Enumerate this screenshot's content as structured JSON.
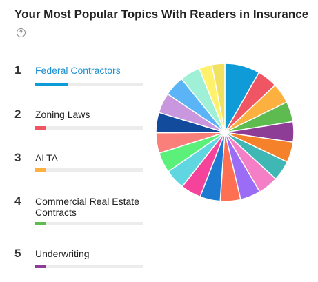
{
  "header": {
    "title": "Your Most Popular Topics With Readers in Insurance",
    "help_icon": "question-circle-icon"
  },
  "topics": [
    {
      "rank": "1",
      "label": "Federal Contractors",
      "color": "#0e9bd8",
      "share": 0.3,
      "active": true
    },
    {
      "rank": "2",
      "label": "Zoning Laws",
      "color": "#f05564",
      "share": 0.1,
      "active": false
    },
    {
      "rank": "3",
      "label": "ALTA",
      "color": "#fbb040",
      "share": 0.1,
      "active": false
    },
    {
      "rank": "4",
      "label": "Commercial Real Estate Contracts",
      "color": "#5dbb4f",
      "share": 0.1,
      "active": false
    },
    {
      "rank": "5",
      "label": "Underwriting",
      "color": "#8e3d96",
      "share": 0.1,
      "active": false
    }
  ],
  "chart_data": {
    "type": "pie",
    "values": [
      9.5,
      5.5,
      5.5,
      5.5,
      5.5,
      5.5,
      5.5,
      5.5,
      5.5,
      5.5,
      5.5,
      5.5,
      5.5,
      5.5,
      5.5,
      5.5,
      5.5,
      5.5,
      5.5,
      3.5,
      3.5
    ],
    "colors": [
      "#0e9bd8",
      "#f05564",
      "#fbb040",
      "#5dbb4f",
      "#8e3d96",
      "#f5822a",
      "#3fb7b4",
      "#f57fc6",
      "#9b6cf5",
      "#ff6f51",
      "#1c7ad1",
      "#f5439b",
      "#60d6e0",
      "#5bf07a",
      "#fa7f7a",
      "#124a9c",
      "#c997dd",
      "#5ab4f5",
      "#9ff0d6",
      "#fff16b",
      "#f0e260"
    ],
    "start_angle_deg": -90
  }
}
